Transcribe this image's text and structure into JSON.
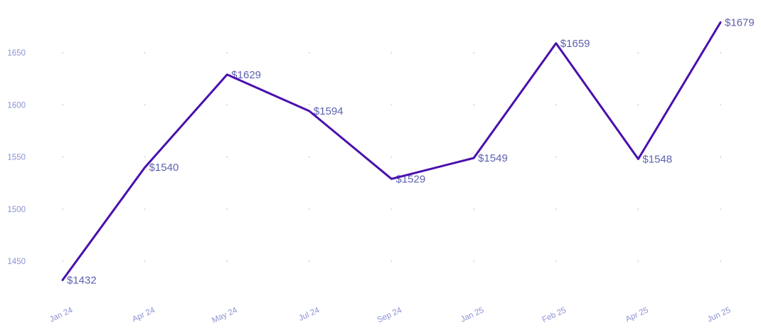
{
  "chart_data": {
    "type": "line",
    "categories": [
      "Jan 24",
      "Apr 24",
      "May 24",
      "Jul 24",
      "Sep 24",
      "Jan 25",
      "Feb 25",
      "Apr 25",
      "Jun 25"
    ],
    "values": [
      1432,
      1540,
      1629,
      1594,
      1529,
      1549,
      1659,
      1548,
      1679
    ],
    "point_labels": [
      "$1432",
      "$1540",
      "$1629",
      "$1594",
      "$1529",
      "$1549",
      "$1659",
      "$1548",
      "$1679"
    ],
    "y_ticks": [
      1450,
      1500,
      1550,
      1600,
      1650
    ],
    "ylim": [
      1420,
      1700
    ],
    "xlabel": "",
    "ylabel": "",
    "title": "",
    "grid": "dotted-intersections",
    "legend_position": "none"
  },
  "colors": {
    "line": "#4a10ad",
    "point_label": "#5d62ae",
    "axis_tick_label": "#8c92d4",
    "grid_dot": "#d9d9d9",
    "background": "#ffffff"
  }
}
